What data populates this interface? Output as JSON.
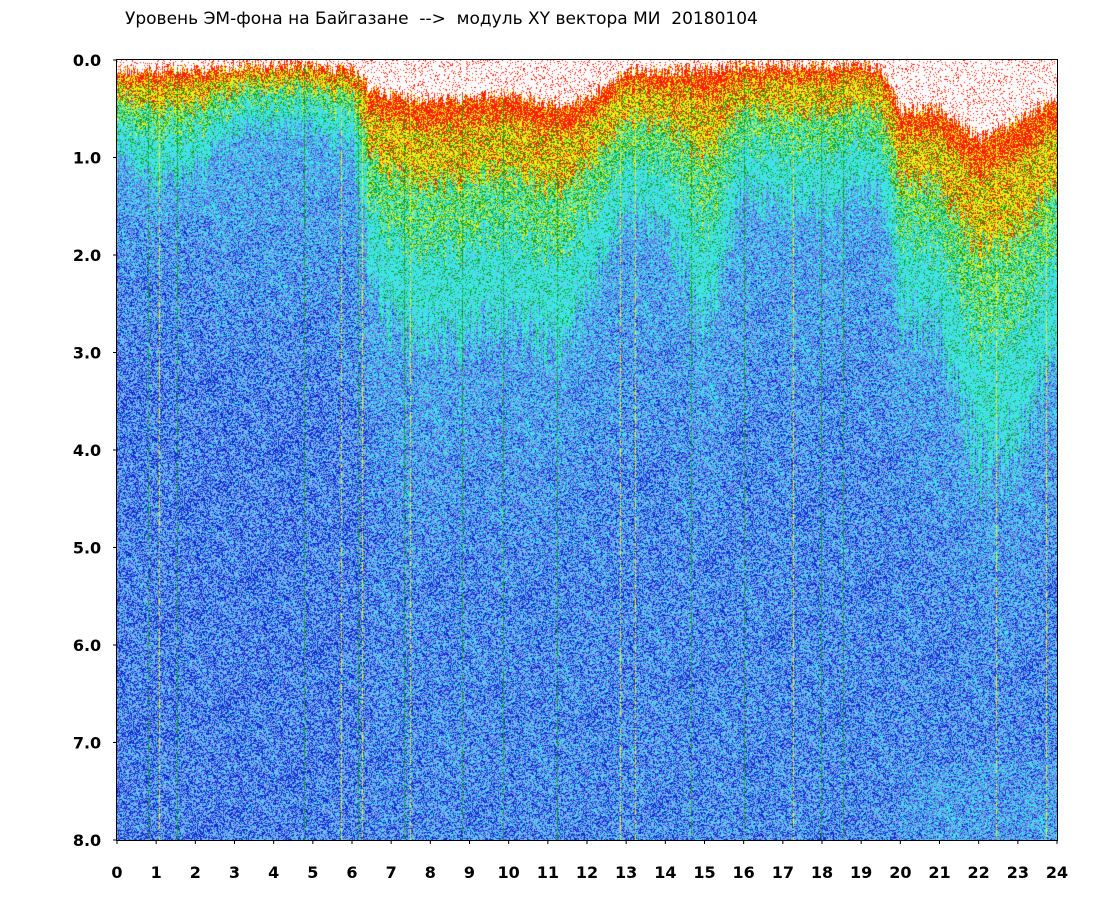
{
  "chart_data": {
    "type": "heatmap",
    "title": "Уровень ЭМ-фона на Байгазане  -->  модуль XY вектора МИ  20180104",
    "xlabel": "",
    "ylabel": "",
    "xlim": [
      0,
      24
    ],
    "ylim": [
      0.0,
      8.0
    ],
    "y_inverted": true,
    "x_ticks": [
      "0",
      "1",
      "2",
      "3",
      "4",
      "5",
      "6",
      "7",
      "8",
      "9",
      "10",
      "11",
      "12",
      "13",
      "14",
      "15",
      "16",
      "17",
      "18",
      "19",
      "20",
      "21",
      "22",
      "23",
      "24"
    ],
    "y_ticks": [
      "0.0",
      "1.0",
      "2.0",
      "3.0",
      "4.0",
      "5.0",
      "6.0",
      "7.0",
      "8.0"
    ],
    "grid": false,
    "color_scale": [
      "#1428d2",
      "#5a6ee6",
      "#78b4f0",
      "#3ce6e6",
      "#14a014",
      "#f0f014",
      "#ff1e0a"
    ],
    "activity_profile_hours": [
      0,
      1,
      2,
      3,
      4,
      5,
      6,
      6.5,
      7,
      8,
      9,
      10,
      11,
      12,
      13,
      14,
      15,
      16,
      17,
      18,
      19,
      19.5,
      20,
      21,
      22,
      23,
      24
    ],
    "activity_profile_upper_edge": [
      0.1,
      0.1,
      0.1,
      0.05,
      0.05,
      0.05,
      0.1,
      0.3,
      0.35,
      0.4,
      0.4,
      0.35,
      0.45,
      0.4,
      0.1,
      0.1,
      0.1,
      0.05,
      0.05,
      0.05,
      0.05,
      0.1,
      0.5,
      0.5,
      0.8,
      0.6,
      0.4
    ],
    "activity_profile_hot_depth": [
      0.6,
      0.9,
      0.8,
      0.5,
      0.5,
      0.5,
      0.6,
      1.5,
      1.8,
      1.9,
      1.9,
      1.8,
      1.9,
      1.6,
      1.1,
      1.2,
      2.1,
      1.0,
      1.1,
      1.1,
      1.0,
      1.0,
      1.6,
      1.8,
      2.6,
      2.6,
      2.0
    ],
    "low_band_y": [
      4.0,
      6.5
    ],
    "low_band_hours": [
      0,
      1.5
    ]
  }
}
